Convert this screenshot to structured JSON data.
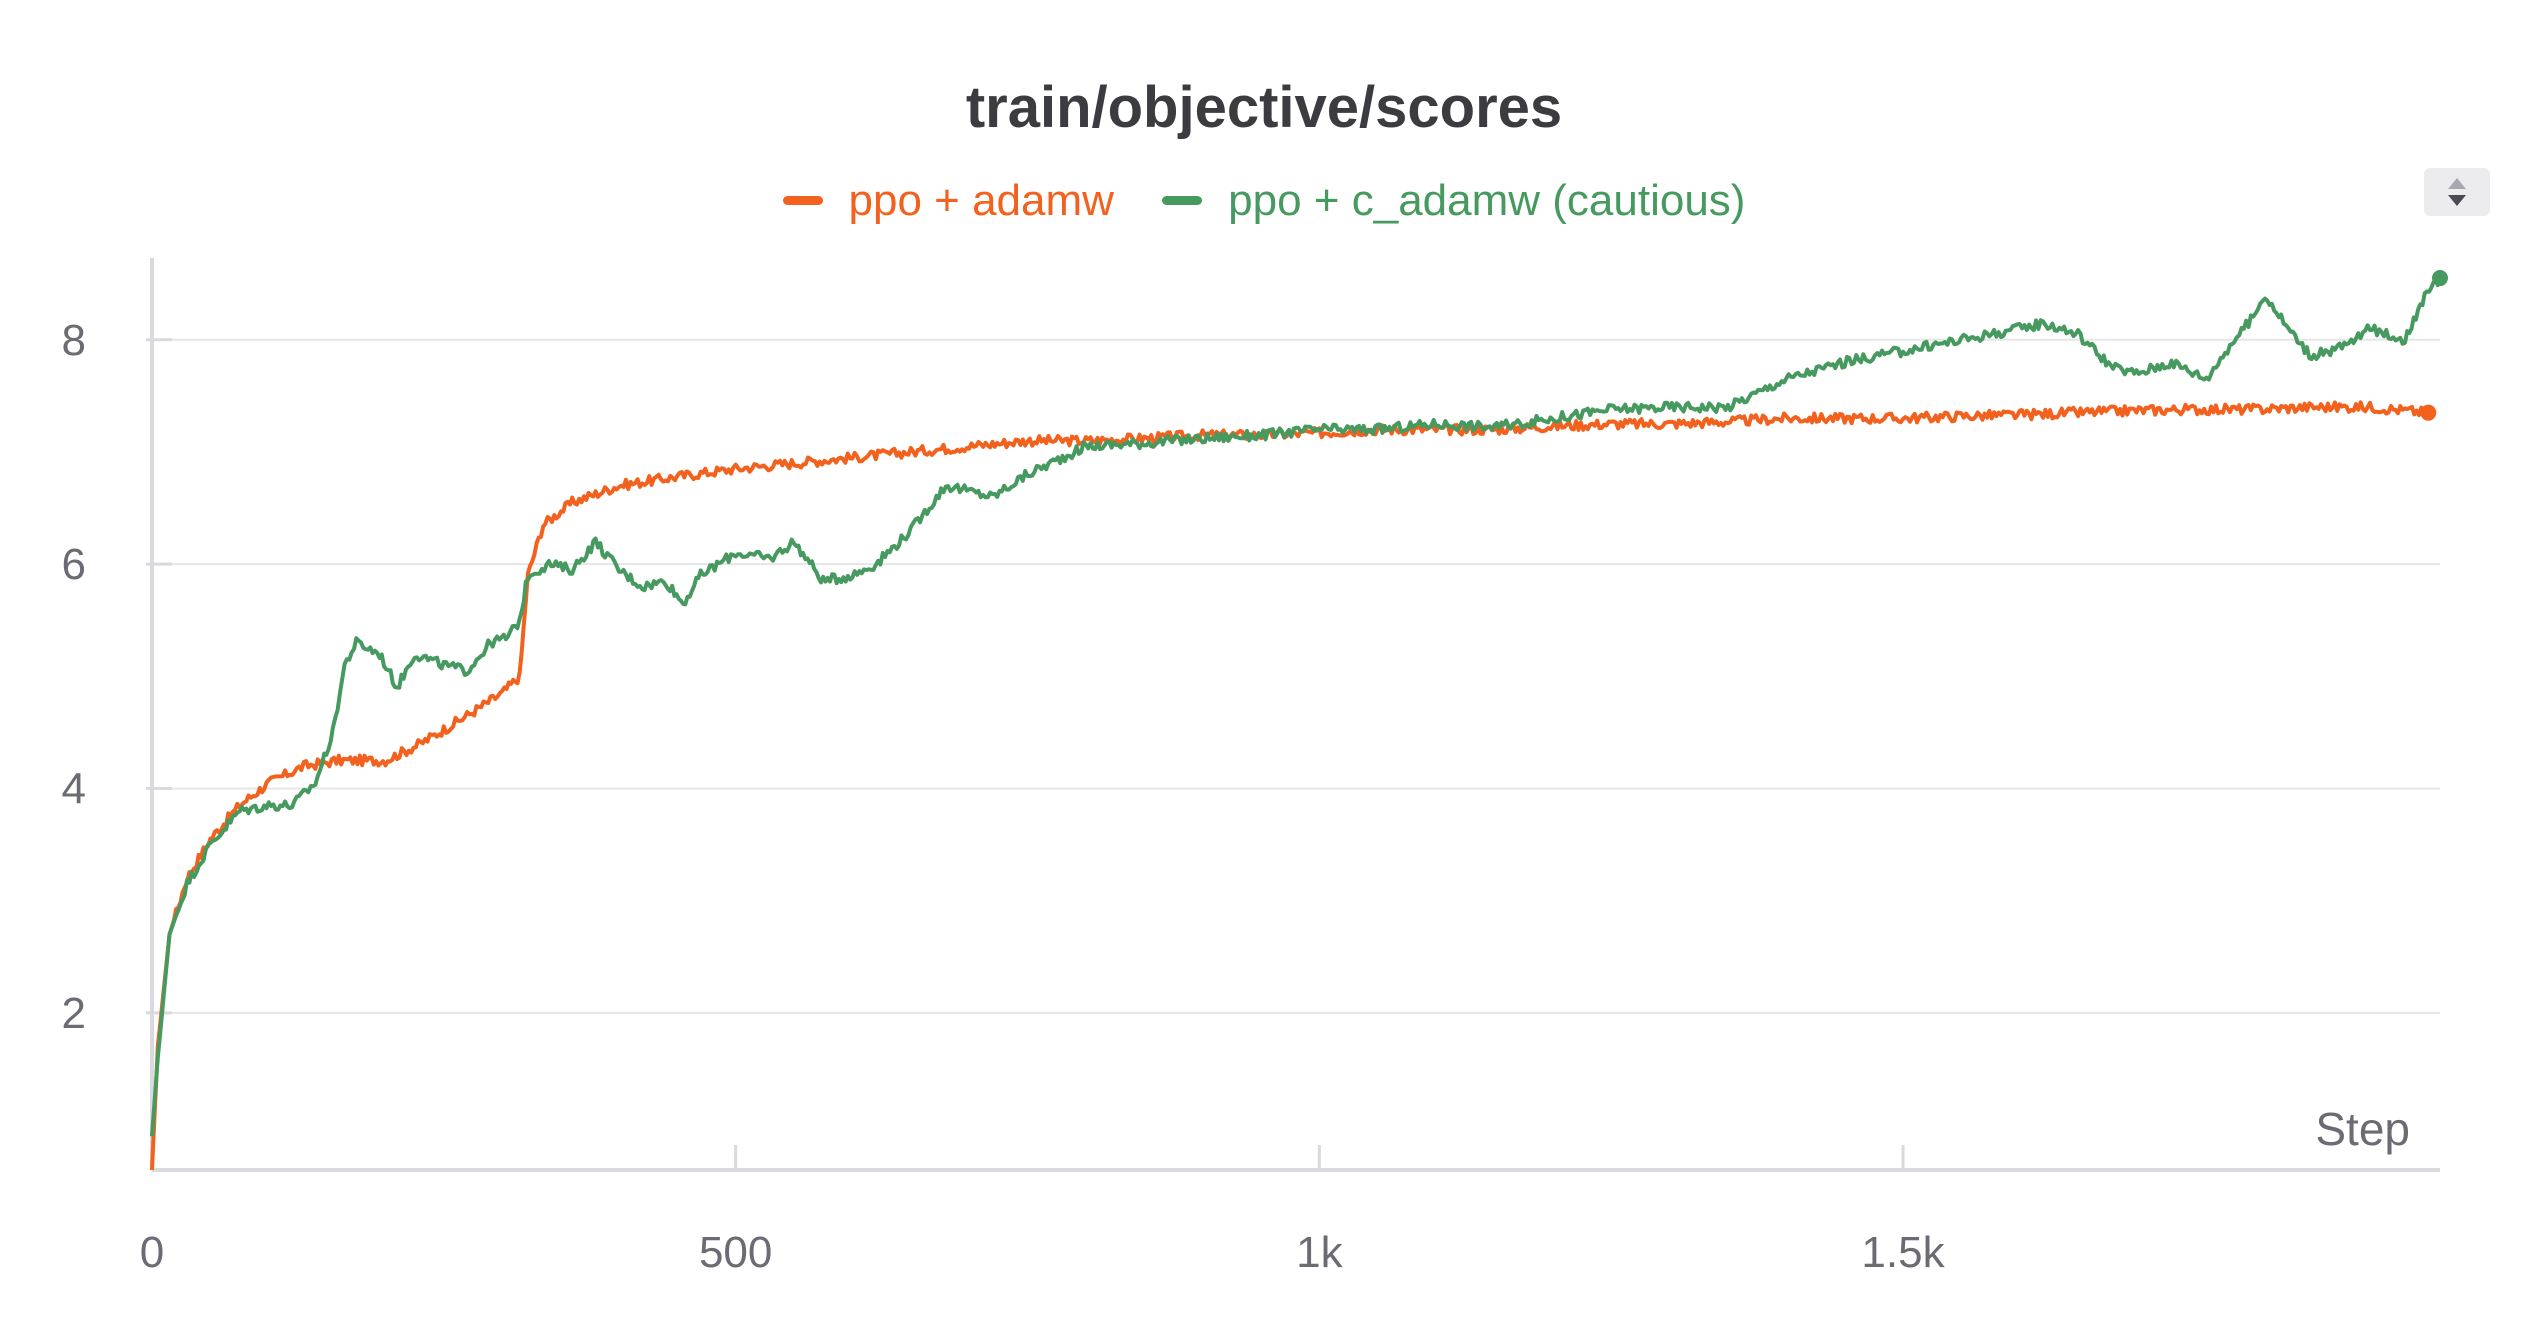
{
  "chart_data": {
    "type": "line",
    "title": "train/objective/scores",
    "xlabel": "Step",
    "ylabel": "",
    "xlim": [
      0,
      1960
    ],
    "ylim": [
      0.6,
      8.8
    ],
    "x_ticks": [
      0,
      500,
      1000,
      1500
    ],
    "x_tick_labels": [
      "0",
      "500",
      "1k",
      "1.5k"
    ],
    "y_ticks": [
      2,
      4,
      6,
      8
    ],
    "y_tick_labels": [
      "2",
      "4",
      "6",
      "8"
    ],
    "grid": true,
    "legend_position": "top-center",
    "series": [
      {
        "name": "ppo + adamw",
        "color": "#f2611d",
        "points": [
          [
            0,
            0.6
          ],
          [
            5,
            1.7
          ],
          [
            15,
            2.7
          ],
          [
            30,
            3.2
          ],
          [
            50,
            3.55
          ],
          [
            75,
            3.85
          ],
          [
            100,
            4.05
          ],
          [
            130,
            4.2
          ],
          [
            160,
            4.25
          ],
          [
            200,
            4.25
          ],
          [
            230,
            4.4
          ],
          [
            270,
            4.65
          ],
          [
            300,
            4.85
          ],
          [
            315,
            5.0
          ],
          [
            322,
            5.9
          ],
          [
            335,
            6.35
          ],
          [
            360,
            6.55
          ],
          [
            400,
            6.7
          ],
          [
            450,
            6.78
          ],
          [
            500,
            6.85
          ],
          [
            550,
            6.9
          ],
          [
            600,
            6.95
          ],
          [
            650,
            7.0
          ],
          [
            700,
            7.05
          ],
          [
            750,
            7.1
          ],
          [
            800,
            7.1
          ],
          [
            850,
            7.12
          ],
          [
            900,
            7.15
          ],
          [
            950,
            7.15
          ],
          [
            1000,
            7.17
          ],
          [
            1050,
            7.2
          ],
          [
            1100,
            7.2
          ],
          [
            1150,
            7.2
          ],
          [
            1200,
            7.23
          ],
          [
            1250,
            7.25
          ],
          [
            1300,
            7.25
          ],
          [
            1350,
            7.27
          ],
          [
            1400,
            7.3
          ],
          [
            1450,
            7.3
          ],
          [
            1500,
            7.3
          ],
          [
            1550,
            7.32
          ],
          [
            1600,
            7.33
          ],
          [
            1650,
            7.35
          ],
          [
            1700,
            7.37
          ],
          [
            1750,
            7.38
          ],
          [
            1800,
            7.38
          ],
          [
            1850,
            7.4
          ],
          [
            1900,
            7.4
          ],
          [
            1950,
            7.35
          ]
        ]
      },
      {
        "name": "ppo + c_adamw (cautious)",
        "color": "#479a5f",
        "points": [
          [
            0,
            0.9
          ],
          [
            5,
            1.6
          ],
          [
            15,
            2.7
          ],
          [
            30,
            3.15
          ],
          [
            50,
            3.5
          ],
          [
            75,
            3.8
          ],
          [
            100,
            3.85
          ],
          [
            120,
            3.85
          ],
          [
            140,
            4.05
          ],
          [
            155,
            4.5
          ],
          [
            165,
            5.1
          ],
          [
            175,
            5.3
          ],
          [
            195,
            5.2
          ],
          [
            210,
            4.9
          ],
          [
            225,
            5.2
          ],
          [
            250,
            5.1
          ],
          [
            270,
            5.05
          ],
          [
            290,
            5.3
          ],
          [
            305,
            5.35
          ],
          [
            315,
            5.5
          ],
          [
            322,
            5.9
          ],
          [
            340,
            6.0
          ],
          [
            360,
            5.95
          ],
          [
            380,
            6.2
          ],
          [
            400,
            5.95
          ],
          [
            420,
            5.8
          ],
          [
            440,
            5.85
          ],
          [
            455,
            5.65
          ],
          [
            470,
            5.9
          ],
          [
            500,
            6.1
          ],
          [
            530,
            6.05
          ],
          [
            550,
            6.2
          ],
          [
            575,
            5.85
          ],
          [
            600,
            5.9
          ],
          [
            620,
            6.0
          ],
          [
            650,
            6.3
          ],
          [
            680,
            6.7
          ],
          [
            700,
            6.65
          ],
          [
            720,
            6.6
          ],
          [
            750,
            6.8
          ],
          [
            780,
            6.95
          ],
          [
            800,
            7.05
          ],
          [
            850,
            7.08
          ],
          [
            900,
            7.12
          ],
          [
            950,
            7.15
          ],
          [
            1000,
            7.2
          ],
          [
            1050,
            7.2
          ],
          [
            1100,
            7.25
          ],
          [
            1150,
            7.22
          ],
          [
            1200,
            7.3
          ],
          [
            1250,
            7.38
          ],
          [
            1300,
            7.4
          ],
          [
            1350,
            7.4
          ],
          [
            1370,
            7.5
          ],
          [
            1400,
            7.65
          ],
          [
            1450,
            7.8
          ],
          [
            1500,
            7.9
          ],
          [
            1550,
            8.0
          ],
          [
            1600,
            8.1
          ],
          [
            1620,
            8.15
          ],
          [
            1650,
            8.05
          ],
          [
            1680,
            7.75
          ],
          [
            1700,
            7.7
          ],
          [
            1730,
            7.8
          ],
          [
            1760,
            7.65
          ],
          [
            1780,
            7.95
          ],
          [
            1800,
            8.2
          ],
          [
            1810,
            8.4
          ],
          [
            1830,
            8.1
          ],
          [
            1850,
            7.85
          ],
          [
            1880,
            7.95
          ],
          [
            1900,
            8.1
          ],
          [
            1930,
            8.0
          ],
          [
            1945,
            8.35
          ],
          [
            1960,
            8.55
          ]
        ]
      }
    ]
  }
}
